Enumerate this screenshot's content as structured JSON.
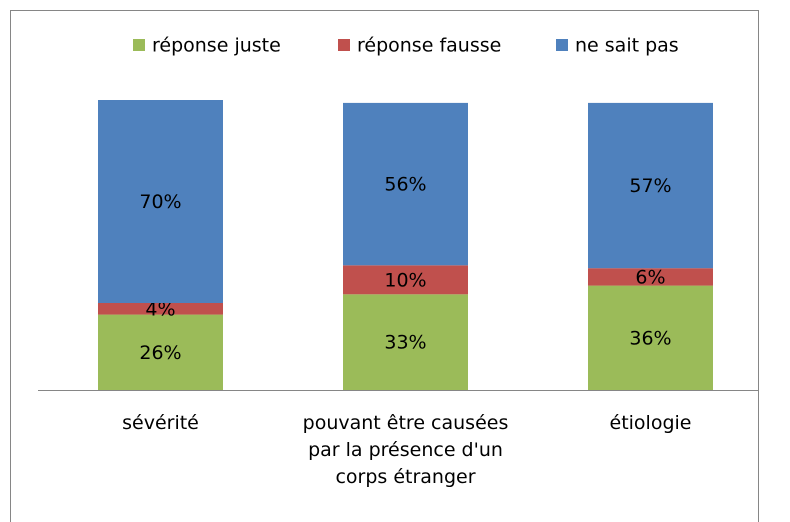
{
  "chart_data": {
    "type": "stacked-bar",
    "categories": [
      "sévérité",
      "pouvant être causées par la présence d'un corps étranger",
      "étiologie"
    ],
    "series": [
      {
        "name": "réponse juste",
        "color": "#9bbb59",
        "values": [
          26,
          33,
          36
        ],
        "value_labels": [
          "26%",
          "33%",
          "36%"
        ]
      },
      {
        "name": "réponse fausse",
        "color": "#c0504d",
        "values": [
          4,
          10,
          6
        ],
        "value_labels": [
          "4%",
          "10%",
          "6%"
        ]
      },
      {
        "name": "ne sait pas",
        "color": "#4f81bd",
        "values": [
          70,
          56,
          57
        ],
        "value_labels": [
          "70%",
          "56%",
          "57%"
        ]
      }
    ],
    "ylim": [
      0,
      100
    ],
    "legend": "top"
  }
}
